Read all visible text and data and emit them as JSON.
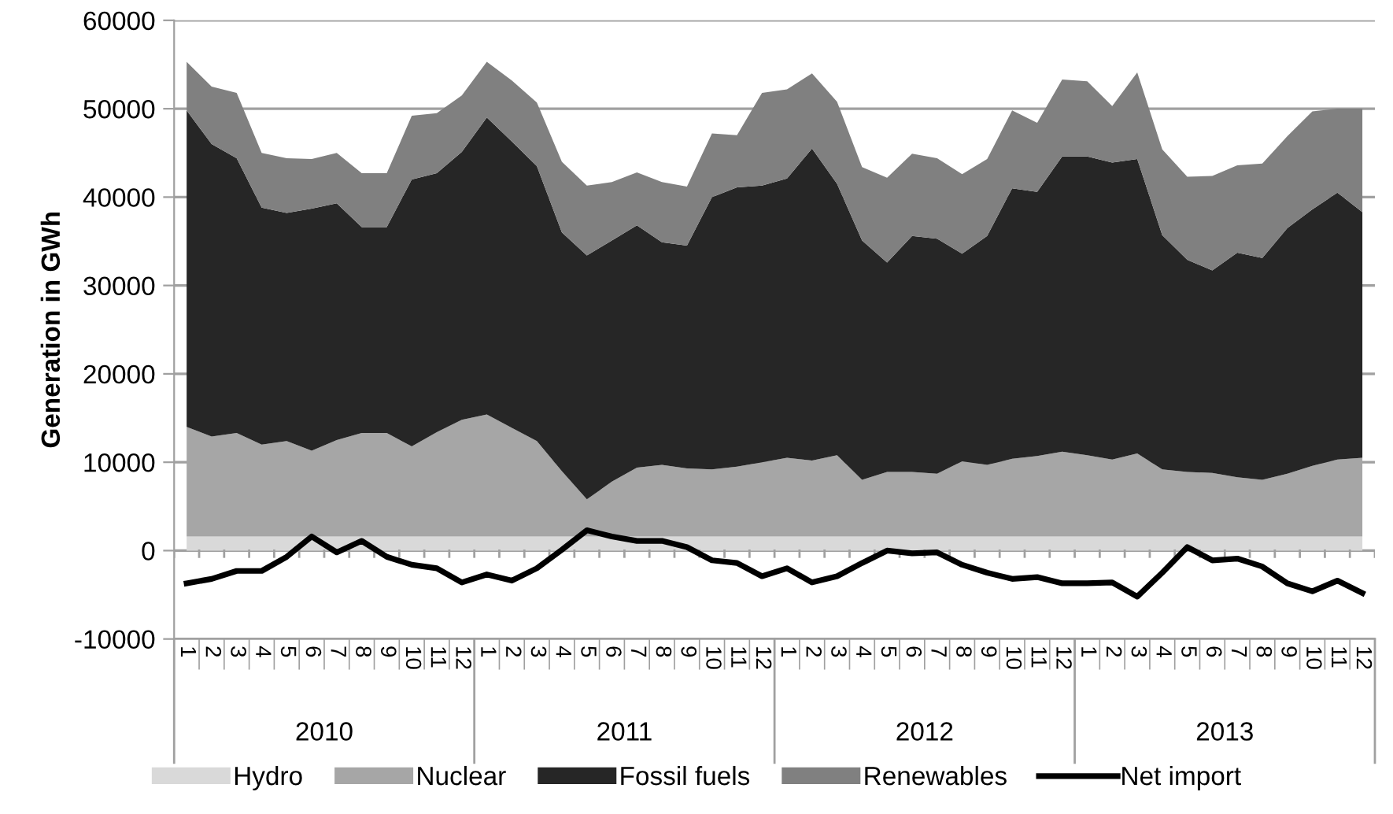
{
  "chart_data": {
    "type": "area",
    "stacked": true,
    "ylabel": "Generation in GWh",
    "categories": [
      "1",
      "2",
      "3",
      "4",
      "5",
      "6",
      "7",
      "8",
      "9",
      "10",
      "11",
      "12",
      "1",
      "2",
      "3",
      "4",
      "5",
      "6",
      "7",
      "8",
      "9",
      "10",
      "11",
      "12",
      "1",
      "2",
      "3",
      "4",
      "5",
      "6",
      "7",
      "8",
      "9",
      "10",
      "11",
      "12",
      "1",
      "2",
      "3",
      "4",
      "5",
      "6",
      "7",
      "8",
      "9",
      "10",
      "11",
      "12"
    ],
    "annotations": [
      "2010",
      "2011",
      "2012",
      "2013"
    ],
    "ylim": [
      -10000,
      60000
    ],
    "yticks": [
      -10000,
      0,
      10000,
      20000,
      30000,
      40000,
      50000,
      60000
    ],
    "grid": "y",
    "legend": "bottom",
    "series": [
      {
        "name": "Hydro",
        "color": "#d9d9d9",
        "values": [
          1600,
          1600,
          1600,
          1600,
          1600,
          1600,
          1600,
          1600,
          1600,
          1600,
          1600,
          1600,
          1600,
          1600,
          1600,
          1600,
          1600,
          1600,
          1600,
          1600,
          1600,
          1600,
          1600,
          1600,
          1600,
          1600,
          1600,
          1600,
          1600,
          1600,
          1600,
          1600,
          1600,
          1600,
          1600,
          1600,
          1600,
          1600,
          1600,
          1600,
          1600,
          1600,
          1600,
          1600,
          1600,
          1600,
          1600,
          1600
        ]
      },
      {
        "name": "Nuclear",
        "color": "#a6a6a6",
        "values": [
          12400,
          11300,
          11700,
          10400,
          10800,
          9700,
          10900,
          11700,
          11700,
          10200,
          11800,
          13200,
          13800,
          12300,
          10800,
          7400,
          4200,
          6200,
          7800,
          8100,
          7700,
          7600,
          7900,
          8400,
          8900,
          8600,
          9200,
          6400,
          7300,
          7300,
          7100,
          8500,
          8100,
          8800,
          9100,
          9600,
          9200,
          8700,
          9400,
          7600,
          7300,
          7200,
          6700,
          6400,
          7100,
          8000,
          8700,
          8900
        ]
      },
      {
        "name": "Fossil fuels",
        "color": "#262626",
        "values": [
          35800,
          33100,
          31100,
          26800,
          25800,
          27400,
          26800,
          23300,
          23300,
          30200,
          29300,
          30300,
          33600,
          32400,
          31100,
          27000,
          27600,
          27300,
          27400,
          25200,
          25200,
          30800,
          31600,
          31300,
          31600,
          35300,
          30700,
          27100,
          23700,
          26700,
          26600,
          23500,
          25900,
          30600,
          29900,
          33400,
          33800,
          33600,
          33300,
          26500,
          24000,
          22900,
          25400,
          25100,
          27800,
          29000,
          30200,
          27800
        ]
      },
      {
        "name": "Renewables",
        "color": "#808080",
        "values": [
          5500,
          6500,
          7400,
          6200,
          6200,
          5600,
          5700,
          6100,
          6100,
          7200,
          6800,
          6400,
          6300,
          6900,
          7200,
          8000,
          7900,
          6600,
          6000,
          6800,
          6700,
          7200,
          5900,
          10500,
          10100,
          8500,
          9300,
          8300,
          9600,
          9300,
          9100,
          9000,
          8700,
          8800,
          7800,
          8700,
          8500,
          6400,
          9800,
          9700,
          9400,
          10700,
          9900,
          10700,
          10400,
          11100,
          9500,
          11700
        ]
      },
      {
        "name": "Net import",
        "type": "line",
        "color": "#000000",
        "values": [
          -3700,
          -3200,
          -2300,
          -2300,
          -700,
          1600,
          -200,
          1100,
          -700,
          -1600,
          -2000,
          -3600,
          -2700,
          -3400,
          -2000,
          100,
          2300,
          1600,
          1100,
          1100,
          400,
          -1100,
          -1400,
          -2900,
          -2000,
          -3600,
          -2900,
          -1400,
          0,
          -300,
          -200,
          -1600,
          -2500,
          -3200,
          -3000,
          -3700,
          -3700,
          -3600,
          -5200,
          -2500,
          400,
          -1100,
          -900,
          -1800,
          -3700,
          -4600,
          -3400,
          -4800
        ]
      }
    ]
  }
}
